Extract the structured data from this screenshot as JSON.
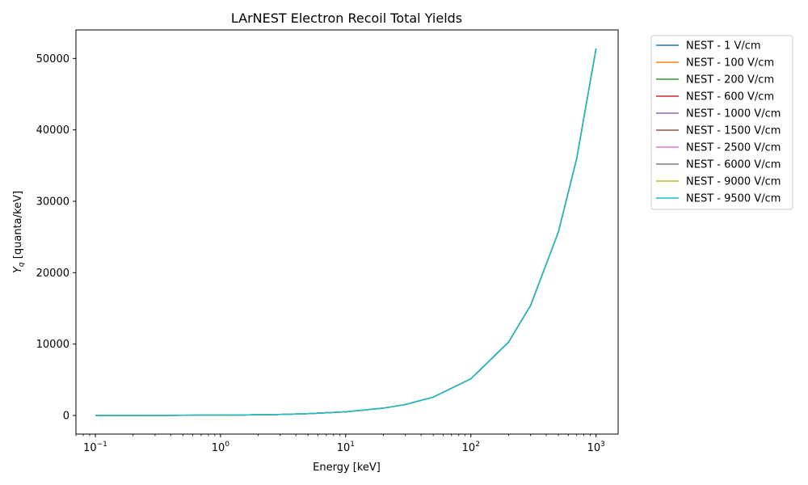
{
  "chart_data": {
    "type": "line",
    "title": "LArNEST Electron Recoil Total Yields",
    "xlabel": "Energy [keV]",
    "ylabel_main": "Y",
    "ylabel_sub": "q",
    "ylabel_rest": " [quanta/keV]",
    "xscale": "log",
    "xlim": [
      0.07,
      1500
    ],
    "ylim": [
      -2600,
      54000
    ],
    "x_ticks": [
      {
        "value": 0.1,
        "base": "10",
        "exp": "−1"
      },
      {
        "value": 1,
        "base": "10",
        "exp": "0"
      },
      {
        "value": 10,
        "base": "10",
        "exp": "1"
      },
      {
        "value": 100,
        "base": "10",
        "exp": "2"
      },
      {
        "value": 1000,
        "base": "10",
        "exp": "3"
      }
    ],
    "y_ticks": [
      {
        "value": 0,
        "label": "0"
      },
      {
        "value": 10000,
        "label": "10000"
      },
      {
        "value": 20000,
        "label": "20000"
      },
      {
        "value": 30000,
        "label": "30000"
      },
      {
        "value": 40000,
        "label": "40000"
      },
      {
        "value": 50000,
        "label": "50000"
      }
    ],
    "grid": false,
    "legend_position": "outside-top-right",
    "x": [
      0.1,
      0.2,
      0.5,
      1,
      2,
      3,
      5,
      10,
      20,
      30,
      50,
      100,
      200,
      300,
      500,
      700,
      1000
    ],
    "series": [
      {
        "name": "NEST - 1 V/cm",
        "color": "#1f77b4",
        "values": [
          5,
          10,
          25,
          50,
          100,
          150,
          255,
          515,
          1030,
          1540,
          2570,
          5140,
          10280,
          15420,
          25700,
          35980,
          51400
        ]
      },
      {
        "name": "NEST - 100 V/cm",
        "color": "#ff7f0e",
        "values": [
          5,
          10,
          25,
          50,
          100,
          150,
          255,
          515,
          1030,
          1540,
          2570,
          5140,
          10280,
          15420,
          25700,
          35980,
          51400
        ]
      },
      {
        "name": "NEST - 200 V/cm",
        "color": "#2ca02c",
        "values": [
          5,
          10,
          25,
          50,
          100,
          150,
          255,
          515,
          1030,
          1540,
          2570,
          5140,
          10280,
          15420,
          25700,
          35980,
          51400
        ]
      },
      {
        "name": "NEST - 600 V/cm",
        "color": "#d62728",
        "values": [
          5,
          10,
          25,
          50,
          100,
          150,
          255,
          515,
          1030,
          1540,
          2570,
          5140,
          10280,
          15420,
          25700,
          35980,
          51400
        ]
      },
      {
        "name": "NEST - 1000 V/cm",
        "color": "#9467bd",
        "values": [
          5,
          10,
          25,
          50,
          100,
          150,
          255,
          515,
          1030,
          1540,
          2570,
          5140,
          10280,
          15420,
          25700,
          35980,
          51400
        ]
      },
      {
        "name": "NEST - 1500 V/cm",
        "color": "#8c564b",
        "values": [
          5,
          10,
          25,
          50,
          100,
          150,
          255,
          515,
          1030,
          1540,
          2570,
          5140,
          10280,
          15420,
          25700,
          35980,
          51400
        ]
      },
      {
        "name": "NEST - 2500 V/cm",
        "color": "#e377c2",
        "values": [
          5,
          10,
          25,
          50,
          100,
          150,
          255,
          515,
          1030,
          1540,
          2570,
          5140,
          10280,
          15420,
          25700,
          35980,
          51400
        ]
      },
      {
        "name": "NEST - 6000 V/cm",
        "color": "#7f7f7f",
        "values": [
          5,
          10,
          25,
          50,
          100,
          150,
          255,
          515,
          1030,
          1540,
          2570,
          5140,
          10280,
          15420,
          25700,
          35980,
          51400
        ]
      },
      {
        "name": "NEST - 9000 V/cm",
        "color": "#bcbd22",
        "values": [
          5,
          10,
          25,
          50,
          100,
          150,
          255,
          515,
          1030,
          1540,
          2570,
          5140,
          10280,
          15420,
          25700,
          35980,
          51400
        ]
      },
      {
        "name": "NEST - 9500 V/cm",
        "color": "#17becf",
        "values": [
          5,
          10,
          25,
          50,
          100,
          150,
          255,
          515,
          1030,
          1540,
          2570,
          5140,
          10280,
          15420,
          25700,
          35980,
          51400
        ]
      }
    ]
  }
}
